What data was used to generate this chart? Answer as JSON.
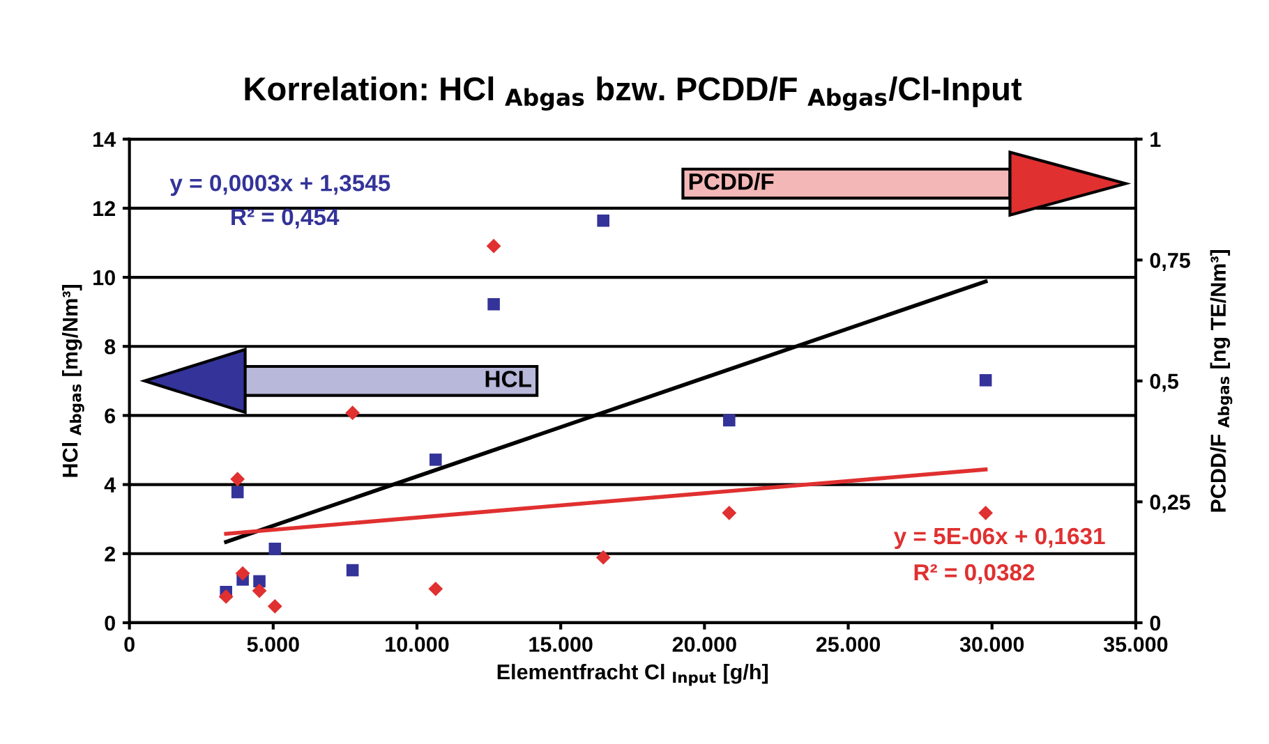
{
  "chart_data": {
    "type": "scatter",
    "title": "Korrelation: HCl $_{Abgas}$ bzw. PCDD/F $_{Abgas}$/Cl-Input",
    "xlabel": "Elementfracht Cl $_{Input}$ [g/h]",
    "ylabel": "HCl $_{Abgas}$ [mg/Nm³]",
    "y2label": "PCDD/F $_{Abgas}$ [ng TE/Nm³]",
    "x": [
      3360,
      3940,
      4520,
      3760,
      5060,
      7760,
      10650,
      12670,
      16480,
      20860,
      29780
    ],
    "series": [
      {
        "color": "#333399",
        "marker": "square",
        "values": [
          0.89,
          1.25,
          1.2,
          3.78,
          2.14,
          1.52,
          4.72,
          9.22,
          11.64,
          5.86,
          7.02
        ]
      },
      {
        "color": "#e03030",
        "marker": "diamond",
        "axis": "y2",
        "x": [
          3360,
          3760,
          3940,
          4520,
          5060,
          7760,
          10650,
          12670,
          16480,
          20860,
          29780
        ],
        "values": [
          0.054,
          0.297,
          0.102,
          0.066,
          0.034,
          0.434,
          0.07,
          0.779,
          0.135,
          0.227,
          0.227
        ]
      },
      {
        "type": "line",
        "color": "#000000",
        "x": [
          3360,
          29780
        ],
        "values": [
          2.34,
          9.88
        ]
      },
      {
        "type": "line",
        "color": "#e03030",
        "axis": "y2",
        "x": [
          3360,
          29780
        ],
        "values": [
          0.184,
          0.317
        ]
      }
    ],
    "annotations": [
      "y = 0,0003x + 1,3545",
      "R² = 0,454",
      "y = 5E-06x + 0,1631",
      "R² = 0,0382",
      "HCL",
      "PCDD/F"
    ],
    "xlim": [
      0,
      35000
    ],
    "xticks": [
      0,
      {
        "value": 5000,
        "label": "5.000"
      },
      {
        "value": 10000,
        "label": "10.000"
      },
      {
        "value": 15000,
        "label": "15.000"
      },
      {
        "value": 20000,
        "label": "20.000"
      },
      {
        "value": 25000,
        "label": "25.000"
      },
      {
        "value": 30000,
        "label": "30.000"
      },
      {
        "value": 35000,
        "label": "35.000"
      }
    ],
    "ylim": [
      0,
      14
    ],
    "yticks": [
      0,
      2,
      4,
      6,
      8,
      10,
      12,
      14
    ],
    "y2lim": [
      0,
      1
    ],
    "y2ticks": [
      0,
      {
        "value": 0.25,
        "label": "0,25"
      },
      {
        "value": 0.5,
        "label": "0,5"
      },
      {
        "value": 0.75,
        "label": "0,75"
      },
      1
    ],
    "grid": "y"
  }
}
